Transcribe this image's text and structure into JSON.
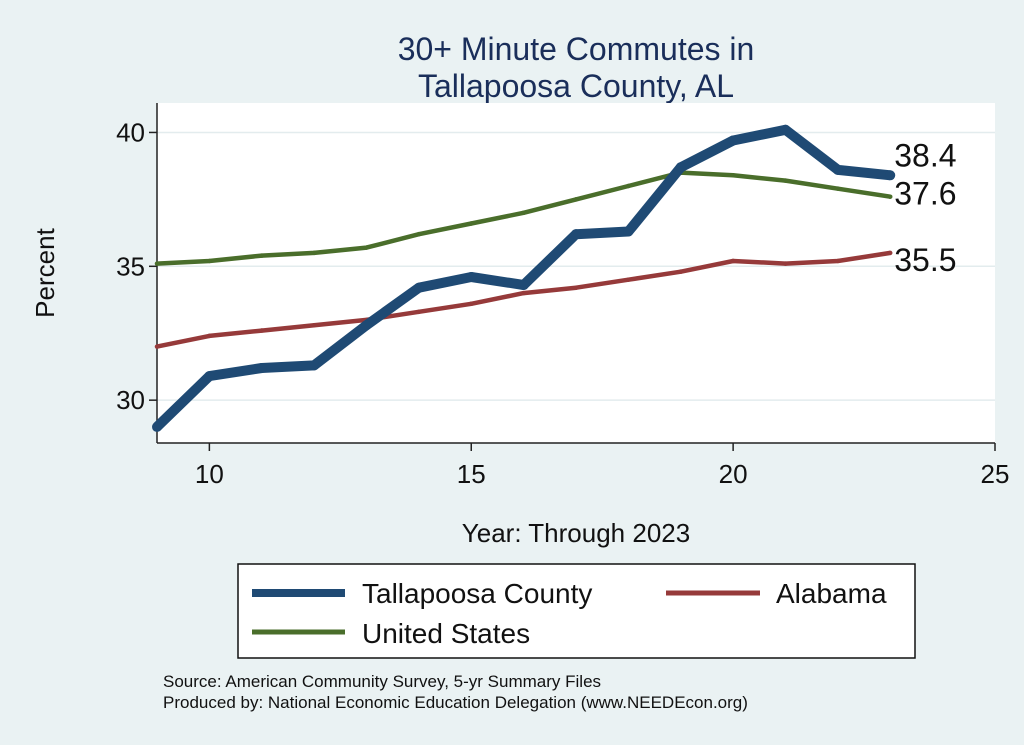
{
  "chart_data": {
    "type": "line",
    "title_lines": [
      "30+ Minute Commutes in",
      "Tallapoosa County, AL"
    ],
    "xlabel": "Year: Through 2023",
    "ylabel": "Percent",
    "xlim": [
      9,
      25
    ],
    "ylim": [
      28.4,
      41.1
    ],
    "xticks": [
      10,
      15,
      20,
      25
    ],
    "yticks": [
      30,
      35,
      40
    ],
    "grid": true,
    "legend_position": "bottom",
    "series": [
      {
        "name": "Tallapoosa County",
        "color": "#1f4a74",
        "x": [
          9,
          10,
          11,
          12,
          13,
          14,
          15,
          16,
          17,
          18,
          19,
          20,
          21,
          22,
          23
        ],
        "values": [
          29.0,
          30.9,
          31.2,
          31.3,
          32.8,
          34.2,
          34.6,
          34.3,
          36.2,
          36.3,
          38.7,
          39.7,
          40.1,
          38.6,
          38.4
        ],
        "end_label": "38.4"
      },
      {
        "name": "Alabama",
        "color": "#963a3a",
        "x": [
          9,
          10,
          11,
          12,
          13,
          14,
          15,
          16,
          17,
          18,
          19,
          20,
          21,
          22,
          23
        ],
        "values": [
          32.0,
          32.4,
          32.6,
          32.8,
          33.0,
          33.3,
          33.6,
          34.0,
          34.2,
          34.5,
          34.8,
          35.2,
          35.1,
          35.2,
          35.5
        ],
        "end_label": "35.5"
      },
      {
        "name": "United States",
        "color": "#4a6e2b",
        "x": [
          9,
          10,
          11,
          12,
          13,
          14,
          15,
          16,
          17,
          18,
          19,
          20,
          21,
          22,
          23
        ],
        "values": [
          35.1,
          35.2,
          35.4,
          35.5,
          35.7,
          36.2,
          36.6,
          37.0,
          37.5,
          38.0,
          38.5,
          38.4,
          38.2,
          37.9,
          37.6
        ],
        "end_label": "37.6"
      }
    ],
    "source_lines": [
      "Source: American Community Survey, 5-yr Summary Files",
      "Produced by: National Economic Education Delegation (www.NEEDEcon.org)"
    ]
  }
}
